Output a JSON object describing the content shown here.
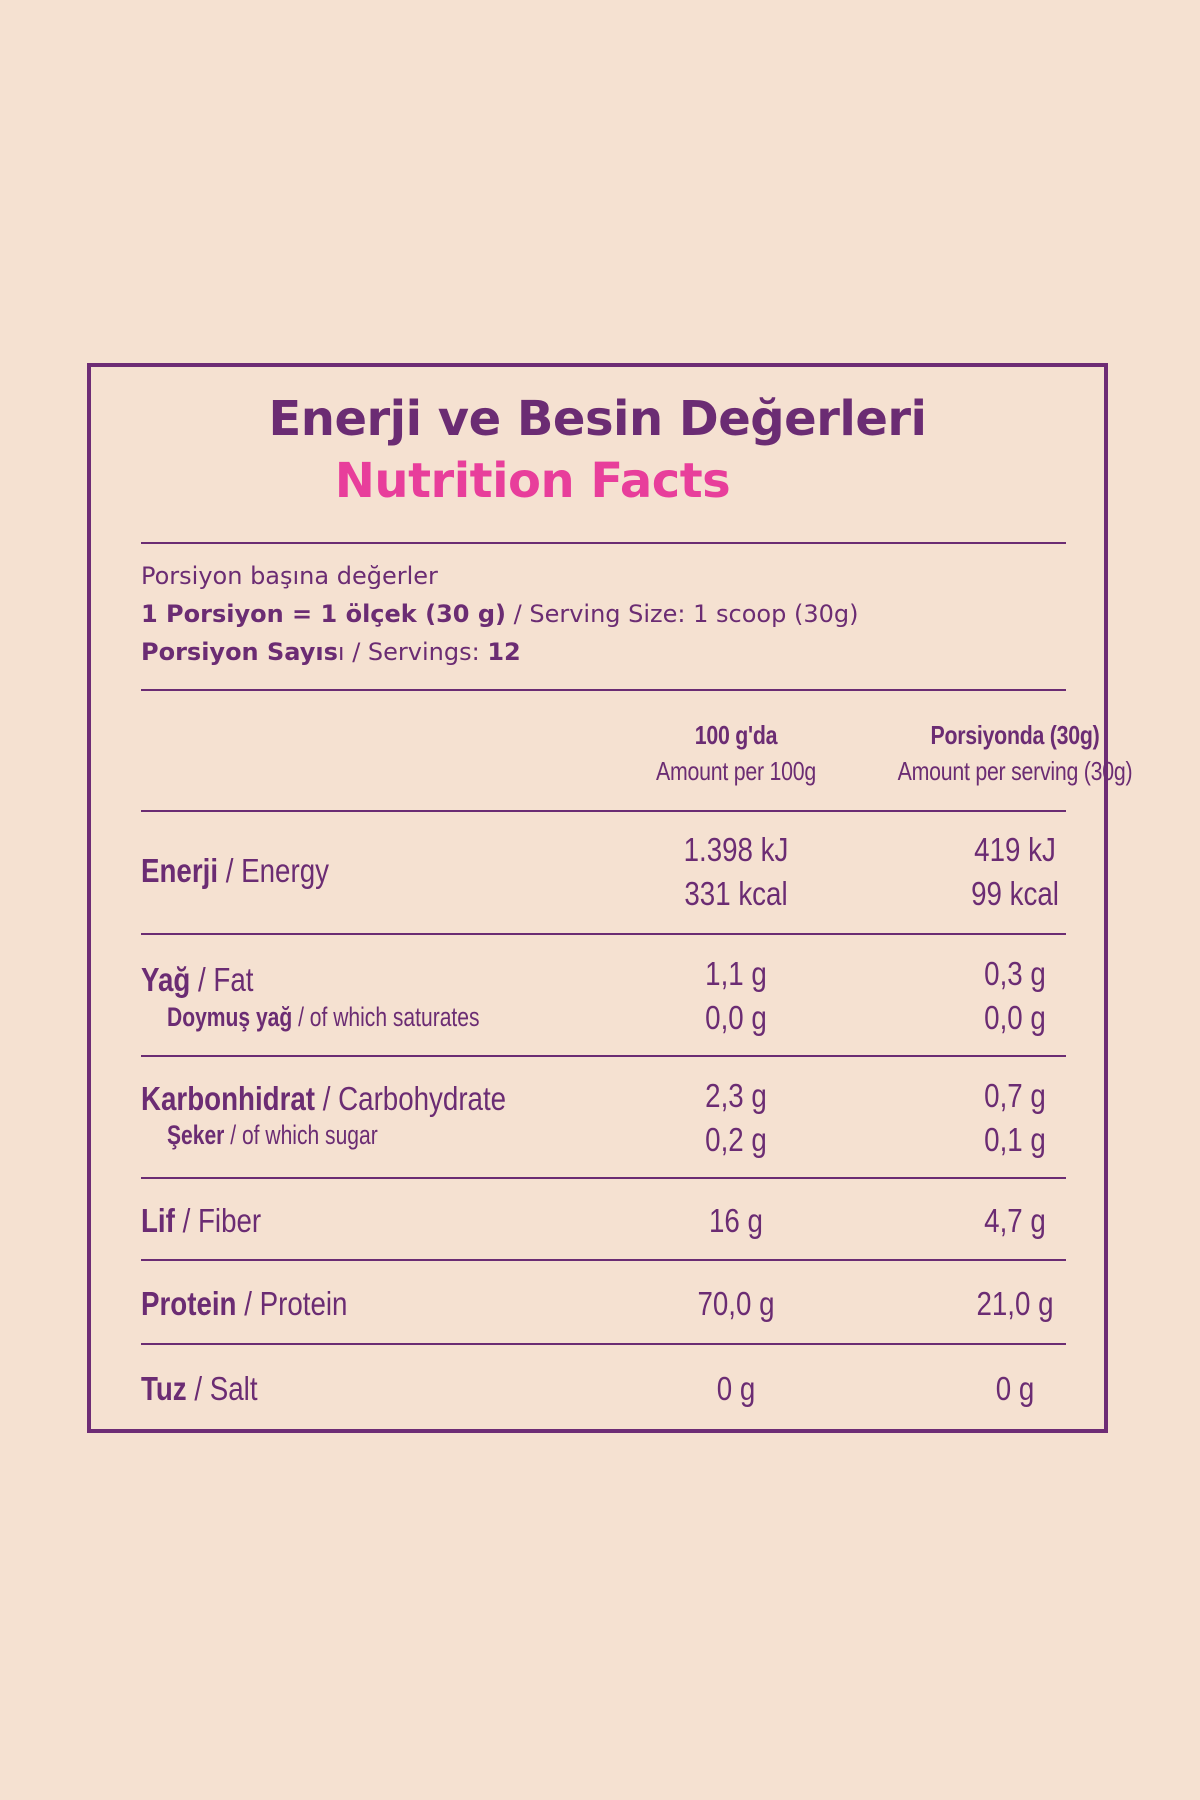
{
  "title_tr": "Enerji ve Besin Değerleri",
  "title_en": "Nutrition Facts",
  "serving": {
    "per_portion_label": "Porsiyon başına değerler",
    "size_tr": "1 Porsiyon = 1 ölçek (30 g)",
    "size_en": " / Serving Size: 1 scoop (30g)",
    "count_tr_bold": "Porsiyon Sayıs",
    "count_tr_rest": "ı",
    "count_en": " / Servings: ",
    "count_value": "12"
  },
  "columns": [
    {
      "tr": "100 g'da",
      "en": "Amount per 100g"
    },
    {
      "tr": "Porsiyonda (30g)",
      "en": "Amount per serving (30g)"
    }
  ],
  "rows": {
    "energy": {
      "tr": "Enerji",
      "en": " / Energy",
      "per100": [
        "1.398 kJ",
        "331 kcal"
      ],
      "perServing": [
        "419 kJ",
        "99 kcal"
      ]
    },
    "fat": {
      "tr": "Yağ",
      "en": " / Fat",
      "per100": "1,1 g",
      "perServing": "0,3 g"
    },
    "saturates": {
      "tr": "Doymuş yağ",
      "en": " / of which saturates",
      "per100": "0,0 g",
      "perServing": "0,0 g"
    },
    "carbohydrate": {
      "tr": "Karbonhidrat",
      "en": " / Carbohydrate",
      "per100": "2,3 g",
      "perServing": "0,7 g"
    },
    "sugar": {
      "tr": "Şeker",
      "en": " / of which sugar",
      "per100": "0,2 g",
      "perServing": "0,1 g"
    },
    "fiber": {
      "tr": "Lif",
      "en": " / Fiber",
      "per100": "16 g",
      "perServing": "4,7 g"
    },
    "protein": {
      "tr": "Protein",
      "en": " / Protein",
      "per100": "70,0 g",
      "perServing": "21,0 g"
    },
    "salt": {
      "tr": "Tuz",
      "en": " / Salt",
      "per100": "0 g",
      "perServing": "0 g"
    }
  },
  "colors": {
    "background": "#f5e1d1",
    "primary": "#6b2c73",
    "accent": "#e83e9b"
  }
}
